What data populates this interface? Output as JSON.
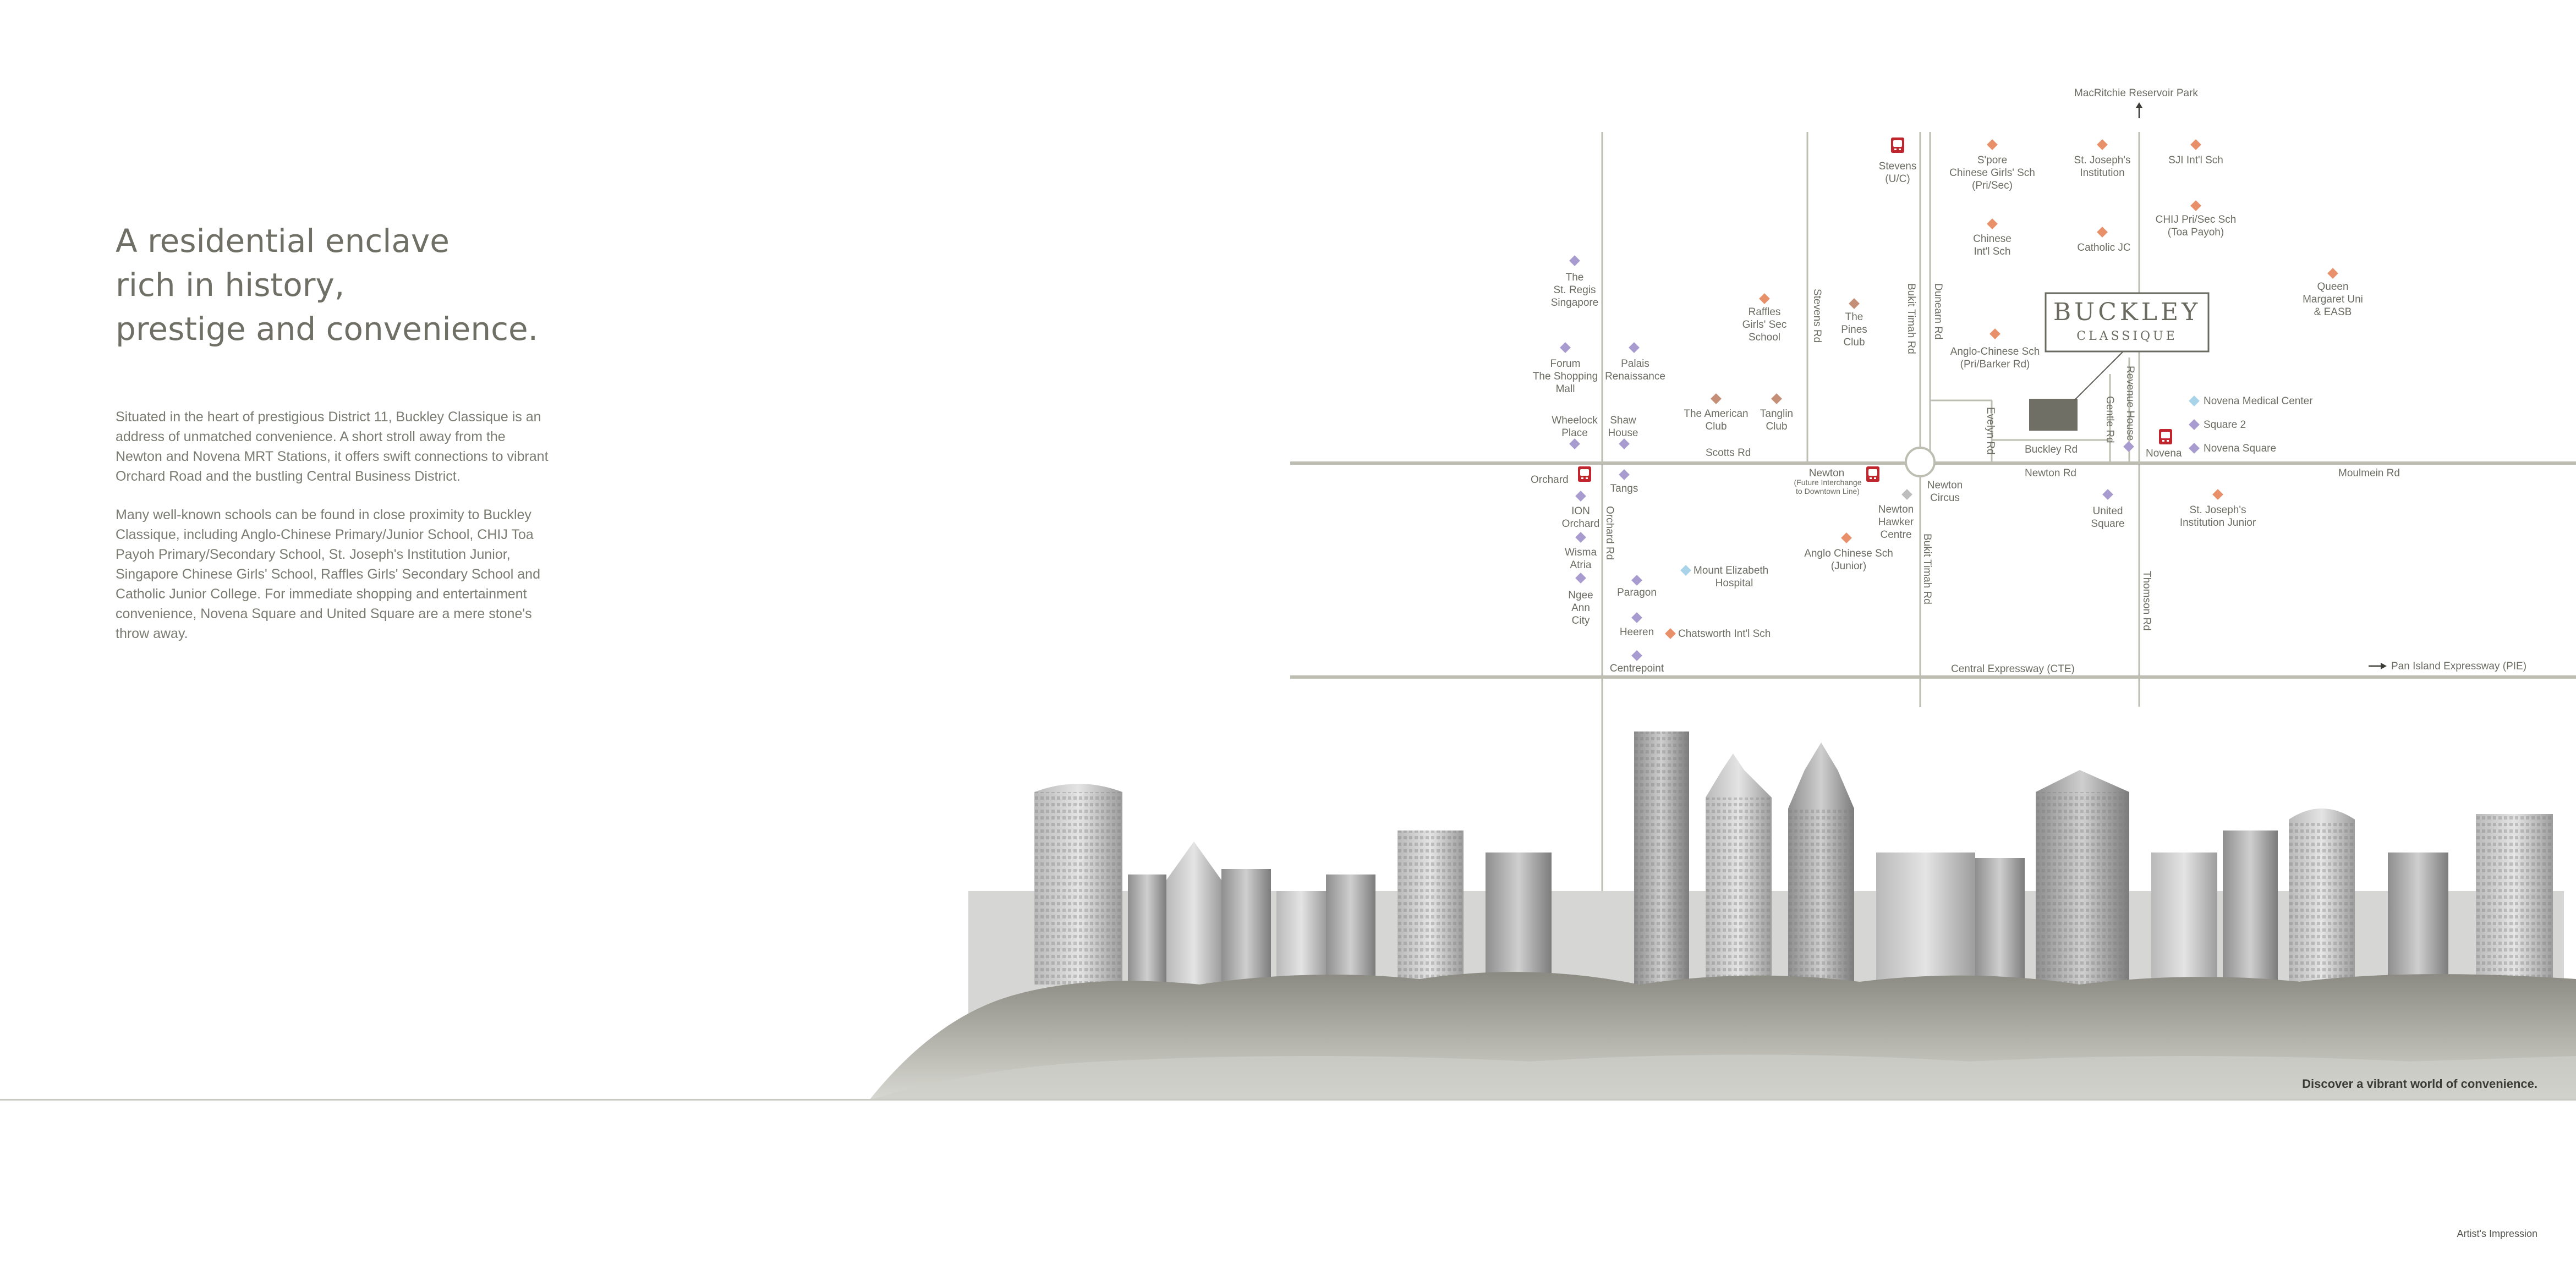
{
  "heading": {
    "line1": "A residential enclave",
    "line2": "rich in history,",
    "line3": "prestige and convenience."
  },
  "paragraphs": [
    "Situated in the heart of prestigious District 11, Buckley Classique is an address of unmatched convenience. A short stroll away from the Newton and Novena MRT Stations, it offers swift connections to vibrant Orchard Road and the bustling Central Business District.",
    "Many well-known schools can be found in close proximity to Buckley Classique, including Anglo-Chinese Primary/Junior School, CHIJ Toa Payoh Primary/Secondary School, St. Joseph's Institution Junior, Singapore Chinese Girls' School, Raffles Girls' Secondary School and Catholic Junior College. For immediate shopping and entertainment convenience, Novena Square and United Square are a mere stone's throw away."
  ],
  "brand": {
    "name": "BUCKLEY",
    "sub": "CLASSIQUE"
  },
  "colors": {
    "school": "#e8906a",
    "mall": "#a89bcf",
    "medical": "#a8d3e8",
    "club": "#c58e76",
    "road": "#bdbdb2",
    "site": "#6f6f66",
    "mrt": "#c0262d"
  },
  "map": {
    "mrt_icon": "mrt-station-icon",
    "roads": {
      "scotts": "Scotts Rd",
      "stevens": "Stevens Rd",
      "bukit_timah_top": "Bukit Timah Rd",
      "bukit_timah_bottom": "Bukit Timah Rd",
      "dunearn": "Dunearn Rd",
      "evelyn": "Evelyn Rd",
      "buckley": "Buckley Rd",
      "gentle": "Gentle Rd",
      "newton": "Newton Rd",
      "moulmein": "Moulmein Rd",
      "thomson": "Thomson Rd",
      "orchard": "Orchard Rd",
      "cte": "Central Expressway (CTE)",
      "pie": "Pan Island Expressway (PIE)",
      "macritchie": "MacRitchie Reservoir Park",
      "revenue": "Revenue House"
    },
    "labels": {
      "stevens_1": "Stevens",
      "stevens_2": "(U/C)",
      "scgs_1": "S'pore",
      "scgs_2": "Chinese Girls' Sch",
      "scgs_3": "(Pri/Sec)",
      "sji_1": "St. Joseph's",
      "sji_2": "Institution",
      "sji_intl": "SJI Int'l Sch",
      "chinese_intl_1": "Chinese",
      "chinese_intl_2": "Int'l Sch",
      "catholic_jc": "Catholic JC",
      "chij_1": "CHIJ Pri/Sec Sch",
      "chij_2": "(Toa Payoh)",
      "queen_1": "Queen",
      "queen_2": "Margaret Uni",
      "queen_3": "& EASB",
      "stregis_1": "The",
      "stregis_2": "St. Regis",
      "stregis_3": "Singapore",
      "raffles_1": "Raffles",
      "raffles_2": "Girls' Sec",
      "raffles_3": "School",
      "pines_1": "The",
      "pines_2": "Pines",
      "pines_3": "Club",
      "acs_barker_1": "Anglo-Chinese Sch",
      "acs_barker_2": "(Pri/Barker Rd)",
      "forum_1": "Forum",
      "forum_2": "The Shopping",
      "forum_3": "Mall",
      "palais_1": "Palais",
      "palais_2": "Renaissance",
      "american_1": "The American",
      "american_2": "Club",
      "tanglin_1": "Tanglin",
      "tanglin_2": "Club",
      "wheelock_1": "Wheelock",
      "wheelock_2": "Place",
      "shaw_1": "Shaw",
      "shaw_2": "House",
      "novena_medical": "Novena Medical Center",
      "square2": "Square 2",
      "novena_square": "Novena Square",
      "novena": "Novena",
      "orchard": "Orchard",
      "tangs": "Tangs",
      "newton_mrt": "Newton",
      "newton_mrt_2": "(Future Interchange",
      "newton_mrt_3": "to Downtown Line)",
      "newton_circus_1": "Newton",
      "newton_circus_2": "Circus",
      "united_1": "United",
      "united_2": "Square",
      "sji_junior_1": "St. Joseph's",
      "sji_junior_2": "Institution Junior",
      "ion_1": "ION",
      "ion_2": "Orchard",
      "hawker_1": "Newton",
      "hawker_2": "Hawker",
      "hawker_3": "Centre",
      "acs_junior_1": "Anglo Chinese Sch",
      "acs_junior_2": "(Junior)",
      "wisma_1": "Wisma",
      "wisma_2": "Atria",
      "mount_e_1": "Mount Elizabeth",
      "mount_e_2": "Hospital",
      "ngee_1": "Ngee",
      "ngee_2": "Ann",
      "ngee_3": "City",
      "paragon": "Paragon",
      "heeren": "Heeren",
      "chatsworth": "Chatsworth Int'l Sch",
      "centrepoint": "Centrepoint"
    }
  },
  "footer": {
    "tagline": "Discover a vibrant world of convenience.",
    "impression": "Artist's Impression"
  }
}
